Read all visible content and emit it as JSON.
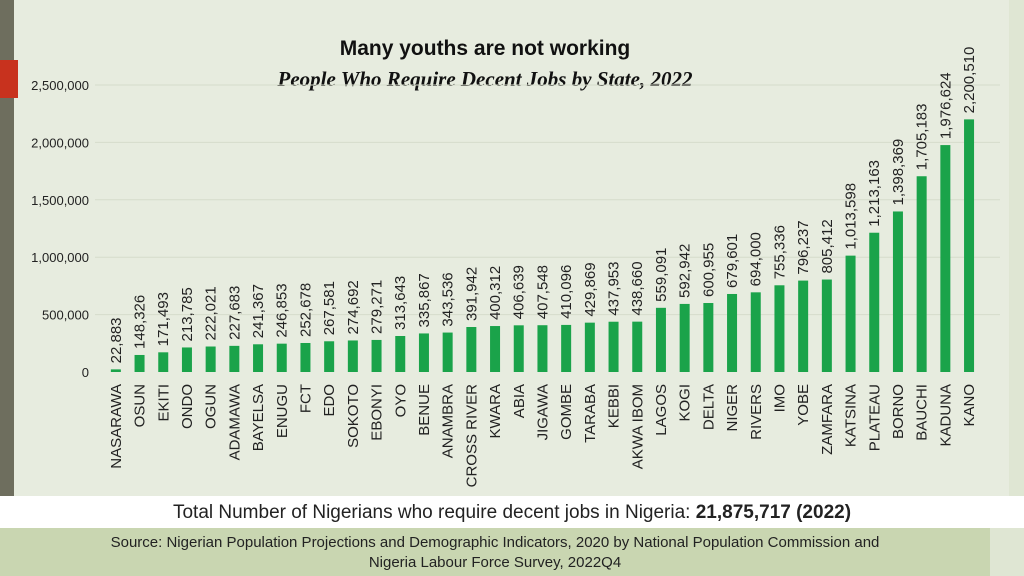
{
  "total": {
    "label": "Total Number of Nigerians who require decent jobs in Nigeria:",
    "value": "21,875,717 (2022)"
  },
  "source": {
    "line1": "Source: Nigerian Population Projections and Demographic Indicators, 2020 by National Population Commission and",
    "line2": "Nigeria Labour Force Survey, 2022Q4"
  },
  "colors": {
    "bar": "#1aa34a",
    "background": "#e7ecdf",
    "grid": "#d6dccb"
  },
  "chart_data": {
    "type": "bar",
    "title": "Many youths are not working",
    "subtitle": "People Who Require Decent Jobs by State, 2022",
    "xlabel": "",
    "ylabel": "",
    "ylim": [
      0,
      2500000
    ],
    "yticks": [
      0,
      500000,
      1000000,
      1500000,
      2000000,
      2500000
    ],
    "ytick_labels": [
      "0",
      "500,000",
      "1,000,000",
      "1,500,000",
      "2,000,000",
      "2,500,000"
    ],
    "grid": true,
    "categories": [
      "NASARAWA",
      "OSUN",
      "EKITI",
      "ONDO",
      "OGUN",
      "ADAMAWA",
      "BAYELSA",
      "ENUGU",
      "FCT",
      "EDO",
      "SOKOTO",
      "EBONYI",
      "OYO",
      "BENUE",
      "ANAMBRA",
      "CROSS RIVER",
      "KWARA",
      "ABIA",
      "JIGAWA",
      "GOMBE",
      "TARABA",
      "KEBBI",
      "AKWA IBOM",
      "LAGOS",
      "KOGI",
      "DELTA",
      "NIGER",
      "RIVERS",
      "IMO",
      "YOBE",
      "ZAMFARA",
      "KATSINA",
      "PLATEAU",
      "BORNO",
      "BAUCHI",
      "KADUNA",
      "KANO"
    ],
    "values": [
      22883,
      148326,
      171493,
      213785,
      222021,
      227683,
      241367,
      246853,
      252678,
      267581,
      274692,
      279271,
      313643,
      335867,
      343536,
      391942,
      400312,
      406639,
      407548,
      410096,
      429869,
      437953,
      438660,
      559091,
      592942,
      600955,
      679601,
      694000,
      755336,
      796237,
      805412,
      1013598,
      1213163,
      1398369,
      1705183,
      1976624,
      2200510
    ],
    "data_labels": [
      "22,883",
      "148,326",
      "171,493",
      "213,785",
      "222,021",
      "227,683",
      "241,367",
      "246,853",
      "252,678",
      "267,581",
      "274,692",
      "279,271",
      "313,643",
      "335,867",
      "343,536",
      "391,942",
      "400,312",
      "406,639",
      "407,548",
      "410,096",
      "429,869",
      "437,953",
      "438,660",
      "559,091",
      "592,942",
      "600,955",
      "679,601",
      "694,000",
      "755,336",
      "796,237",
      "805,412",
      "1,013,598",
      "1,213,163",
      "1,398,369",
      "1,705,183",
      "1,976,624",
      "2,200,510"
    ]
  }
}
